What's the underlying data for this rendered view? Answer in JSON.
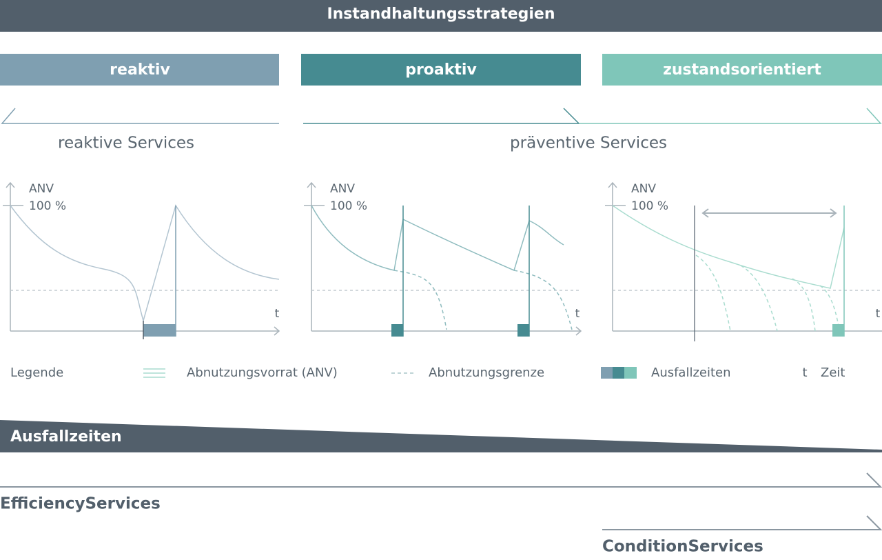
{
  "header": {
    "title": "Instandhaltungsstrategien"
  },
  "strategies": [
    "reaktiv",
    "proaktiv",
    "zustandsorientiert"
  ],
  "groups": [
    "reaktive Services",
    "präventive Services"
  ],
  "panels": [
    {
      "y_label": "ANV",
      "y_value": "100 %",
      "x_label": "t"
    },
    {
      "y_label": "ANV",
      "y_value": "100 %",
      "x_label": "t"
    },
    {
      "y_label": "ANV",
      "y_value": "100 %",
      "x_label": "t"
    }
  ],
  "legend": {
    "title": "Legende",
    "items": [
      "Abnutzungsvorrat (ANV)",
      "Abnutzungsgrenze",
      "Ausfallzeiten"
    ],
    "symbol": "t",
    "symbol_label": "Zeit"
  },
  "footer": {
    "downtime": "Ausfallzeiten",
    "services": [
      "EfficiencyServices",
      "ConditionServices"
    ]
  }
}
